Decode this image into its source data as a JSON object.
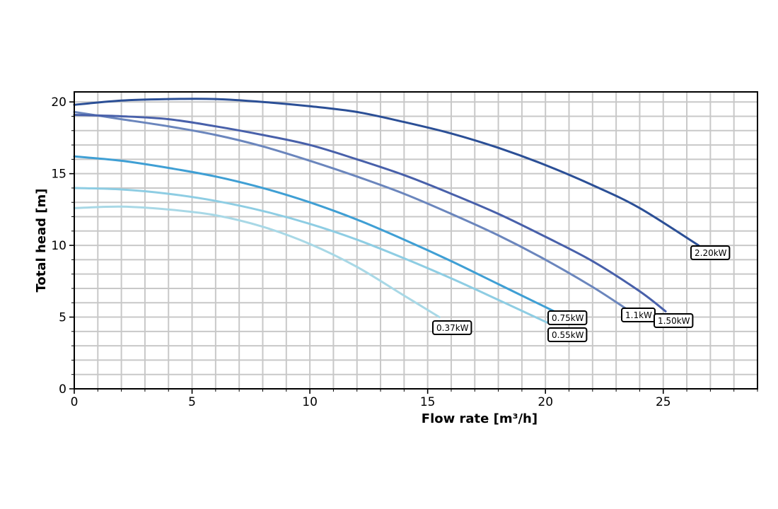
{
  "chart_data": {
    "type": "line",
    "xlabel": "Flow rate [m³/h]",
    "ylabel": "Total head [m]",
    "xlim": [
      0,
      29
    ],
    "ylim": [
      0,
      20.7
    ],
    "xticks": [
      0,
      5,
      10,
      15,
      20,
      25
    ],
    "yticks": [
      0,
      5,
      10,
      15,
      20
    ],
    "grid": true,
    "colors": {
      "0.37kW": "#a8d8e6",
      "0.55kW": "#8ecde3",
      "0.75kW": "#3f9fd4",
      "1.1kW": "#6b86bd",
      "1.50kW": "#4860aa",
      "2.20kW": "#2b4f96"
    },
    "series": [
      {
        "name": "0.37kW",
        "x": [
          0,
          2,
          4,
          6,
          8,
          10,
          12,
          14,
          15.5
        ],
        "y": [
          12.6,
          12.7,
          12.5,
          12.1,
          11.3,
          10.1,
          8.5,
          6.5,
          5.0
        ]
      },
      {
        "name": "0.55kW",
        "x": [
          0,
          2,
          4,
          6,
          8,
          10,
          12,
          14,
          16,
          18,
          20.1
        ],
        "y": [
          14.0,
          13.9,
          13.6,
          13.1,
          12.4,
          11.5,
          10.4,
          9.1,
          7.7,
          6.2,
          4.6
        ]
      },
      {
        "name": "0.75kW",
        "x": [
          0,
          2,
          4,
          6,
          8,
          10,
          12,
          14,
          16,
          18,
          20.5
        ],
        "y": [
          16.2,
          15.9,
          15.4,
          14.8,
          14.0,
          13.0,
          11.8,
          10.4,
          8.9,
          7.3,
          5.3
        ]
      },
      {
        "name": "1.1kW",
        "x": [
          0,
          2,
          4,
          6,
          8,
          10,
          12,
          14,
          16,
          18,
          20,
          22,
          23.5
        ],
        "y": [
          19.3,
          18.8,
          18.3,
          17.7,
          16.9,
          15.9,
          14.8,
          13.6,
          12.2,
          10.7,
          9.0,
          7.1,
          5.5
        ]
      },
      {
        "name": "1.50kW",
        "x": [
          0,
          2,
          4,
          6,
          8,
          10,
          12,
          14,
          16,
          18,
          20,
          22,
          24,
          25.1
        ],
        "y": [
          19.1,
          19.0,
          18.8,
          18.3,
          17.7,
          17.0,
          16.0,
          14.9,
          13.6,
          12.2,
          10.6,
          8.9,
          6.8,
          5.4
        ]
      },
      {
        "name": "2.20kW",
        "x": [
          0,
          2,
          4,
          6,
          8,
          10,
          12,
          14,
          16,
          18,
          20,
          22,
          24,
          26.5
        ],
        "y": [
          19.8,
          20.1,
          20.2,
          20.2,
          20.0,
          19.7,
          19.3,
          18.6,
          17.8,
          16.8,
          15.6,
          14.2,
          12.6,
          10.0
        ]
      }
    ]
  }
}
